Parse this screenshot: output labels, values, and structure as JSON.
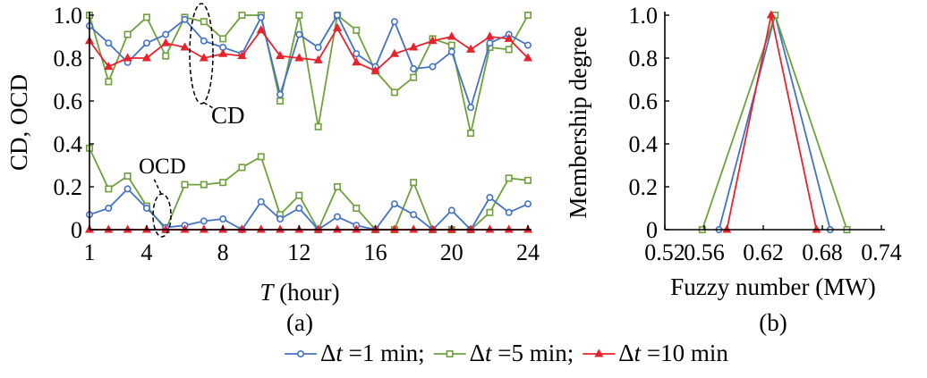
{
  "legend": {
    "items": [
      {
        "prefix": "Δ",
        "var": "t",
        "suffix": " =1 min;",
        "color": "#4472C4",
        "marker": "circle"
      },
      {
        "prefix": "Δ",
        "var": "t",
        "suffix": " =5 min;",
        "color": "#70A03C",
        "marker": "square"
      },
      {
        "prefix": "Δ",
        "var": "t",
        "suffix": " =10 min",
        "color": "#E8232E",
        "marker": "triangle"
      }
    ]
  },
  "chart_data": [
    {
      "type": "line",
      "panel_label": "(a)",
      "xlabel_var": "T",
      "xlabel_unit": " (hour)",
      "ylabel": "CD, OCD",
      "xlim": [
        1,
        24
      ],
      "ylim": [
        0,
        1.0
      ],
      "xticks": [
        1,
        4,
        8,
        12,
        16,
        20,
        24
      ],
      "yticks": [
        "0",
        "0.2",
        "0.4",
        "0.6",
        "0.8",
        "1.0"
      ],
      "yticks_values": [
        0,
        0.2,
        0.4,
        0.6,
        0.8,
        1.0
      ],
      "annotations": [
        {
          "text": "CD",
          "near_x": 7,
          "near_y": 0.9
        },
        {
          "text": "OCD",
          "near_x": 5,
          "near_y": 0.05
        }
      ],
      "x": [
        1,
        2,
        3,
        4,
        5,
        6,
        7,
        8,
        9,
        10,
        11,
        12,
        13,
        14,
        15,
        16,
        17,
        18,
        19,
        20,
        21,
        22,
        23,
        24
      ],
      "series": [
        {
          "group": "CD",
          "legend_index": 0,
          "values": [
            0.95,
            0.87,
            0.78,
            0.87,
            0.91,
            0.98,
            0.88,
            0.85,
            0.82,
            0.99,
            0.63,
            0.91,
            0.85,
            1.0,
            0.82,
            0.76,
            0.97,
            0.75,
            0.76,
            0.83,
            0.57,
            0.87,
            0.91,
            0.86
          ]
        },
        {
          "group": "CD",
          "legend_index": 1,
          "values": [
            1.0,
            0.69,
            0.91,
            0.99,
            0.81,
            0.99,
            0.97,
            0.89,
            1.0,
            1.0,
            0.6,
            1.0,
            0.48,
            1.0,
            0.93,
            0.74,
            0.64,
            0.71,
            0.89,
            0.86,
            0.45,
            0.85,
            0.84,
            1.0
          ]
        },
        {
          "group": "CD",
          "legend_index": 2,
          "values": [
            0.88,
            0.76,
            0.8,
            0.8,
            0.87,
            0.85,
            0.8,
            0.82,
            0.81,
            0.93,
            0.81,
            0.8,
            0.79,
            0.94,
            0.78,
            0.74,
            0.82,
            0.85,
            0.88,
            0.9,
            0.84,
            0.9,
            0.89,
            0.8
          ]
        },
        {
          "group": "OCD",
          "legend_index": 0,
          "values": [
            0.07,
            0.1,
            0.19,
            0.1,
            0.01,
            0.02,
            0.04,
            0.05,
            0.0,
            0.13,
            0.05,
            0.1,
            0.0,
            0.06,
            0.02,
            0.0,
            0.12,
            0.07,
            0.0,
            0.09,
            0.0,
            0.15,
            0.08,
            0.12
          ]
        },
        {
          "group": "OCD",
          "legend_index": 1,
          "values": [
            0.38,
            0.19,
            0.25,
            0.11,
            0.0,
            0.21,
            0.21,
            0.22,
            0.29,
            0.34,
            0.07,
            0.16,
            0.0,
            0.2,
            0.1,
            0.0,
            0.0,
            0.22,
            0.0,
            0.0,
            0.0,
            0.08,
            0.24,
            0.23
          ]
        },
        {
          "group": "OCD",
          "legend_index": 2,
          "values": [
            0,
            0,
            0,
            0,
            0,
            0,
            0,
            0,
            0,
            0,
            0,
            0,
            0,
            0,
            0,
            0,
            0,
            0,
            0,
            0,
            0,
            0,
            0,
            0
          ]
        }
      ]
    },
    {
      "type": "line",
      "panel_label": "(b)",
      "xlabel": "Fuzzy number (MW)",
      "ylabel": "Membership degree",
      "xlim": [
        0.52,
        0.74
      ],
      "ylim": [
        0,
        1.0
      ],
      "xticks": [
        "0.52",
        "0.56",
        "0.62",
        "0.68",
        "0.74"
      ],
      "xticks_values": [
        0.52,
        0.56,
        0.62,
        0.68,
        0.74
      ],
      "yticks": [
        "0",
        "0.2",
        "0.4",
        "0.6",
        "0.8",
        "1.0"
      ],
      "yticks_values": [
        0,
        0.2,
        0.4,
        0.6,
        0.8,
        1.0
      ],
      "series": [
        {
          "legend_index": 0,
          "x": [
            0.575,
            0.632,
            0.688
          ],
          "y": [
            0,
            1,
            0
          ]
        },
        {
          "legend_index": 1,
          "x": [
            0.558,
            0.632,
            0.705
          ],
          "y": [
            0,
            1,
            0
          ]
        },
        {
          "legend_index": 2,
          "x": [
            0.583,
            0.628,
            0.674
          ],
          "y": [
            0,
            1,
            0
          ]
        }
      ]
    }
  ]
}
